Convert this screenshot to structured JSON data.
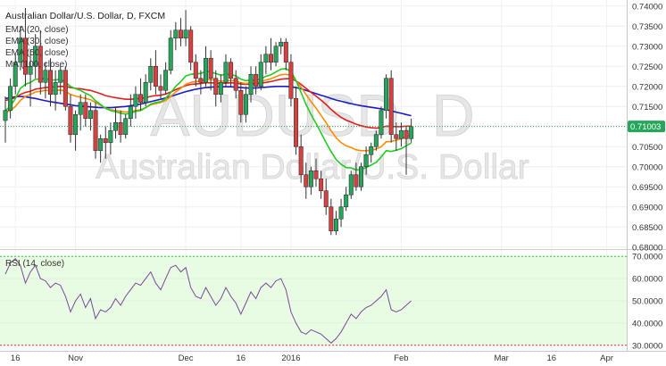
{
  "chart_data": {
    "type": "candlestick",
    "title": "Australian Dollar/U.S. Dollar, D, FXCM",
    "watermark": {
      "symbol": "AUDUSD, D",
      "name": "Australian Dollar/U.S. Dollar"
    },
    "indicators": [
      {
        "label": "EMA (20, close)",
        "color": "#22cc22"
      },
      {
        "label": "EMA (30, close)",
        "color": "#ff8c00"
      },
      {
        "label": "EMA (50, close)",
        "color": "#e02020"
      },
      {
        "label": "MA (100, close)",
        "color": "#1a1acc"
      }
    ],
    "x_ticks": [
      {
        "label": "16",
        "i": 2
      },
      {
        "label": "Nov",
        "i": 14
      },
      {
        "label": "Dec",
        "i": 36
      },
      {
        "label": "16",
        "i": 47
      },
      {
        "label": "2016",
        "i": 57
      },
      {
        "label": "Feb",
        "i": 79
      },
      {
        "label": "Mar",
        "i": 99
      },
      {
        "label": "16",
        "i": 109
      },
      {
        "label": "Apr",
        "i": 120
      }
    ],
    "x_range": [
      0,
      124
    ],
    "price_axis": {
      "ylim": [
        0.6795,
        0.7415
      ],
      "ticks": [
        "0.74000",
        "0.73500",
        "0.73000",
        "0.72500",
        "0.72000",
        "0.71500",
        "0.71000",
        "0.70500",
        "0.70000",
        "0.69500",
        "0.69000",
        "0.68500",
        "0.68000"
      ],
      "last_price": "0.71003",
      "last_value": 0.71003,
      "last_color": "#26a65b"
    },
    "candles": [
      [
        0.7115,
        0.7175,
        0.706,
        0.714
      ],
      [
        0.714,
        0.722,
        0.712,
        0.72
      ],
      [
        0.72,
        0.728,
        0.718,
        0.726
      ],
      [
        0.726,
        0.735,
        0.724,
        0.732
      ],
      [
        0.732,
        0.7395,
        0.72,
        0.723
      ],
      [
        0.723,
        0.729,
        0.715,
        0.725
      ],
      [
        0.725,
        0.733,
        0.722,
        0.73
      ],
      [
        0.73,
        0.734,
        0.718,
        0.721
      ],
      [
        0.721,
        0.726,
        0.717,
        0.724
      ],
      [
        0.724,
        0.727,
        0.715,
        0.718
      ],
      [
        0.718,
        0.724,
        0.714,
        0.721
      ],
      [
        0.721,
        0.725,
        0.718,
        0.724
      ],
      [
        0.724,
        0.725,
        0.714,
        0.715
      ],
      [
        0.715,
        0.718,
        0.706,
        0.708
      ],
      [
        0.708,
        0.714,
        0.704,
        0.713
      ],
      [
        0.713,
        0.718,
        0.709,
        0.716
      ],
      [
        0.716,
        0.718,
        0.71,
        0.712
      ],
      [
        0.712,
        0.716,
        0.709,
        0.714
      ],
      [
        0.714,
        0.716,
        0.702,
        0.704
      ],
      [
        0.704,
        0.708,
        0.701,
        0.707
      ],
      [
        0.707,
        0.71,
        0.702,
        0.706
      ],
      [
        0.706,
        0.711,
        0.703,
        0.709
      ],
      [
        0.709,
        0.715,
        0.707,
        0.711
      ],
      [
        0.711,
        0.714,
        0.706,
        0.708
      ],
      [
        0.708,
        0.713,
        0.707,
        0.712
      ],
      [
        0.712,
        0.718,
        0.71,
        0.715
      ],
      [
        0.715,
        0.72,
        0.712,
        0.718
      ],
      [
        0.718,
        0.722,
        0.714,
        0.716
      ],
      [
        0.716,
        0.723,
        0.715,
        0.721
      ],
      [
        0.721,
        0.727,
        0.719,
        0.725
      ],
      [
        0.725,
        0.729,
        0.718,
        0.72
      ],
      [
        0.72,
        0.723,
        0.717,
        0.719
      ],
      [
        0.719,
        0.726,
        0.718,
        0.724
      ],
      [
        0.724,
        0.734,
        0.723,
        0.732
      ],
      [
        0.732,
        0.736,
        0.729,
        0.734
      ],
      [
        0.734,
        0.737,
        0.73,
        0.732
      ],
      [
        0.732,
        0.739,
        0.73,
        0.734
      ],
      [
        0.734,
        0.735,
        0.724,
        0.726
      ],
      [
        0.726,
        0.728,
        0.72,
        0.722
      ],
      [
        0.722,
        0.724,
        0.718,
        0.721
      ],
      [
        0.721,
        0.73,
        0.72,
        0.727
      ],
      [
        0.727,
        0.729,
        0.719,
        0.722
      ],
      [
        0.722,
        0.724,
        0.715,
        0.718
      ],
      [
        0.718,
        0.723,
        0.716,
        0.721
      ],
      [
        0.721,
        0.728,
        0.72,
        0.726
      ],
      [
        0.726,
        0.727,
        0.72,
        0.722
      ],
      [
        0.722,
        0.724,
        0.717,
        0.719
      ],
      [
        0.719,
        0.721,
        0.711,
        0.713
      ],
      [
        0.713,
        0.72,
        0.711,
        0.718
      ],
      [
        0.718,
        0.725,
        0.716,
        0.723
      ],
      [
        0.723,
        0.725,
        0.718,
        0.72
      ],
      [
        0.72,
        0.728,
        0.719,
        0.726
      ],
      [
        0.726,
        0.73,
        0.723,
        0.728
      ],
      [
        0.728,
        0.732,
        0.724,
        0.726
      ],
      [
        0.726,
        0.731,
        0.725,
        0.73
      ],
      [
        0.73,
        0.732,
        0.728,
        0.731
      ],
      [
        0.731,
        0.732,
        0.724,
        0.726
      ],
      [
        0.726,
        0.728,
        0.715,
        0.717
      ],
      [
        0.717,
        0.72,
        0.703,
        0.705
      ],
      [
        0.705,
        0.708,
        0.696,
        0.698
      ],
      [
        0.698,
        0.701,
        0.692,
        0.695
      ],
      [
        0.695,
        0.7,
        0.693,
        0.699
      ],
      [
        0.699,
        0.702,
        0.695,
        0.697
      ],
      [
        0.697,
        0.699,
        0.692,
        0.694
      ],
      [
        0.694,
        0.697,
        0.688,
        0.69
      ],
      [
        0.69,
        0.692,
        0.683,
        0.684
      ],
      [
        0.684,
        0.689,
        0.683,
        0.687
      ],
      [
        0.687,
        0.692,
        0.685,
        0.69
      ],
      [
        0.69,
        0.695,
        0.689,
        0.693
      ],
      [
        0.693,
        0.699,
        0.692,
        0.698
      ],
      [
        0.698,
        0.701,
        0.694,
        0.695
      ],
      [
        0.695,
        0.701,
        0.694,
        0.7
      ],
      [
        0.7,
        0.705,
        0.698,
        0.703
      ],
      [
        0.703,
        0.706,
        0.701,
        0.705
      ],
      [
        0.705,
        0.709,
        0.704,
        0.708
      ],
      [
        0.708,
        0.715,
        0.707,
        0.714
      ],
      [
        0.714,
        0.723,
        0.712,
        0.722
      ],
      [
        0.722,
        0.724,
        0.706,
        0.708
      ],
      [
        0.708,
        0.711,
        0.704,
        0.707
      ],
      [
        0.707,
        0.711,
        0.705,
        0.709
      ],
      [
        0.709,
        0.71,
        0.698,
        0.707
      ],
      [
        0.707,
        0.712,
        0.706,
        0.71
      ]
    ],
    "ema20": [
      0.714,
      0.715,
      0.717,
      0.7195,
      0.7205,
      0.721,
      0.7218,
      0.7218,
      0.722,
      0.7216,
      0.7216,
      0.7218,
      0.721,
      0.72,
      0.7194,
      0.719,
      0.7183,
      0.7177,
      0.7164,
      0.7155,
      0.7145,
      0.714,
      0.7137,
      0.7133,
      0.7131,
      0.7133,
      0.7138,
      0.714,
      0.7147,
      0.7156,
      0.716,
      0.7162,
      0.717,
      0.7184,
      0.72,
      0.7212,
      0.7226,
      0.723,
      0.7232,
      0.7232,
      0.7238,
      0.7236,
      0.7232,
      0.7228,
      0.723,
      0.723,
      0.7226,
      0.7218,
      0.7214,
      0.7216,
      0.7215,
      0.7219,
      0.7225,
      0.7229,
      0.7236,
      0.7243,
      0.7244,
      0.7237,
      0.7215,
      0.7185,
      0.7155,
      0.713,
      0.7108,
      0.7084,
      0.706,
      0.7038,
      0.7018,
      0.7006,
      0.6998,
      0.6997,
      0.6992,
      0.6993,
      0.6998,
      0.7004,
      0.7011,
      0.7024,
      0.704,
      0.7038,
      0.7041,
      0.7045,
      0.7052,
      0.7059
    ],
    "ema30": [
      0.7135,
      0.714,
      0.715,
      0.7165,
      0.7175,
      0.718,
      0.7186,
      0.7188,
      0.719,
      0.719,
      0.719,
      0.7191,
      0.7188,
      0.718,
      0.7176,
      0.7173,
      0.717,
      0.7167,
      0.716,
      0.7153,
      0.7146,
      0.7142,
      0.714,
      0.7138,
      0.7136,
      0.7137,
      0.714,
      0.7142,
      0.7147,
      0.7154,
      0.7157,
      0.716,
      0.7165,
      0.7175,
      0.7186,
      0.7195,
      0.7205,
      0.721,
      0.7212,
      0.7213,
      0.7217,
      0.7217,
      0.7215,
      0.7213,
      0.7214,
      0.7215,
      0.7213,
      0.7209,
      0.7207,
      0.7209,
      0.7209,
      0.7212,
      0.7216,
      0.7219,
      0.7224,
      0.7229,
      0.723,
      0.7228,
      0.7215,
      0.7198,
      0.718,
      0.7162,
      0.7146,
      0.7128,
      0.711,
      0.709,
      0.7072,
      0.706,
      0.7052,
      0.7048,
      0.7042,
      0.704,
      0.704,
      0.7041,
      0.7044,
      0.705,
      0.7062,
      0.7063,
      0.7066,
      0.707,
      0.7075,
      0.708
    ],
    "ema50": [
      0.7165,
      0.7168,
      0.7172,
      0.718,
      0.7185,
      0.7188,
      0.7193,
      0.7195,
      0.7197,
      0.7198,
      0.7199,
      0.72,
      0.72,
      0.7197,
      0.7195,
      0.7194,
      0.7192,
      0.719,
      0.7186,
      0.7182,
      0.7177,
      0.7174,
      0.7172,
      0.717,
      0.7168,
      0.7168,
      0.7169,
      0.717,
      0.7172,
      0.7175,
      0.7177,
      0.7178,
      0.7181,
      0.7186,
      0.7192,
      0.7197,
      0.7202,
      0.7205,
      0.7206,
      0.7207,
      0.7209,
      0.7209,
      0.7208,
      0.7207,
      0.7208,
      0.7209,
      0.7208,
      0.7206,
      0.7205,
      0.7206,
      0.7206,
      0.7208,
      0.721,
      0.7212,
      0.7215,
      0.7218,
      0.7219,
      0.7219,
      0.7214,
      0.7205,
      0.7195,
      0.7185,
      0.7176,
      0.7166,
      0.7155,
      0.7143,
      0.7132,
      0.7123,
      0.7116,
      0.7111,
      0.7106,
      0.7102,
      0.7099,
      0.7097,
      0.7096,
      0.7097,
      0.7101,
      0.71,
      0.71,
      0.71,
      0.7101,
      0.7101
    ],
    "ma100": [
      0.717,
      0.7172,
      0.7174,
      0.7175,
      0.7174,
      0.7172,
      0.717,
      0.7167,
      0.7164,
      0.7162,
      0.716,
      0.7158,
      0.7156,
      0.7154,
      0.7152,
      0.7151,
      0.715,
      0.7149,
      0.7148,
      0.7147,
      0.7147,
      0.7147,
      0.7148,
      0.7149,
      0.715,
      0.7152,
      0.7154,
      0.7156,
      0.7159,
      0.7162,
      0.7165,
      0.7168,
      0.7171,
      0.7175,
      0.7179,
      0.7183,
      0.7187,
      0.719,
      0.7193,
      0.7195,
      0.7197,
      0.7198,
      0.7199,
      0.7199,
      0.7199,
      0.7199,
      0.7198,
      0.7197,
      0.7196,
      0.7196,
      0.7196,
      0.7197,
      0.7198,
      0.7199,
      0.72,
      0.72,
      0.72,
      0.7199,
      0.7197,
      0.7194,
      0.719,
      0.7186,
      0.7182,
      0.7178,
      0.7174,
      0.717,
      0.7166,
      0.7163,
      0.716,
      0.7157,
      0.7154,
      0.7152,
      0.715,
      0.7148,
      0.7146,
      0.7144,
      0.7142,
      0.7139,
      0.7136,
      0.7133,
      0.713,
      0.7127
    ],
    "rsi": {
      "label": "RSI (14, close)",
      "ylim": [
        27.5,
        72.5
      ],
      "ticks": [
        "70.0000",
        "60.0000",
        "50.0000",
        "40.0000",
        "30.0000"
      ],
      "upper": 70,
      "lower": 30,
      "values": [
        62,
        67,
        69,
        66,
        58,
        63,
        66,
        60,
        59,
        56,
        58,
        57,
        52,
        45,
        50,
        53,
        47,
        51,
        42,
        46,
        45,
        47,
        51,
        48,
        52,
        55,
        58,
        57,
        60,
        63,
        58,
        55,
        60,
        65,
        66,
        63,
        65,
        56,
        52,
        51,
        56,
        52,
        48,
        51,
        56,
        52,
        49,
        44,
        49,
        54,
        51,
        56,
        58,
        56,
        59,
        60,
        55,
        45,
        40,
        36,
        35,
        37,
        36,
        35,
        33,
        31,
        33,
        36,
        40,
        44,
        42,
        45,
        47,
        48,
        50,
        52,
        55,
        46,
        45,
        46,
        48,
        50
      ]
    }
  }
}
